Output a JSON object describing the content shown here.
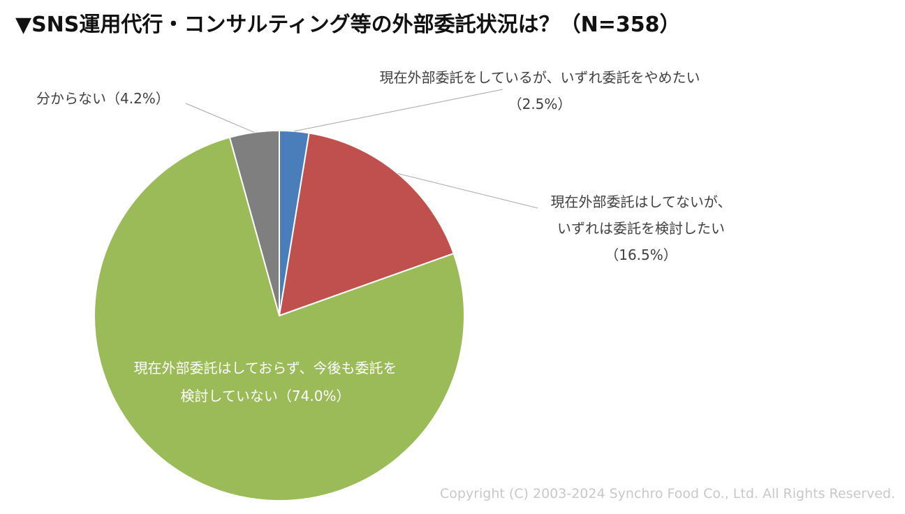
{
  "title": "▼SNS運用代行・コンサルティング等の外部委託状況は？（N=358）",
  "copyright": "Copyright (C) 2003-2024  Synchro Food Co., Ltd. All Rights Reserved.",
  "chart_data": {
    "type": "pie",
    "start": "12 o'clock",
    "direction": "clockwise",
    "slices": [
      {
        "label_lines": [
          "現在外部委託をしているが、いずれ委託をやめたい",
          "（2.5%）"
        ],
        "value": 2.5,
        "color": "#4a7ebb"
      },
      {
        "label_lines": [
          "現在外部委託はしてないが、",
          "いずれは委託を検討したい",
          "（16.5%）"
        ],
        "value": 16.5,
        "color": "#c0504d"
      },
      {
        "label_lines": [
          "現在外部委託はしておらず、今後も委託を",
          "検討していない（74.0%）"
        ],
        "value": 74.0,
        "color": "#9bbb59"
      },
      {
        "label_lines": [
          "分からない（4.2%）"
        ],
        "value": 4.2,
        "color": "#7f7f7f"
      }
    ]
  }
}
